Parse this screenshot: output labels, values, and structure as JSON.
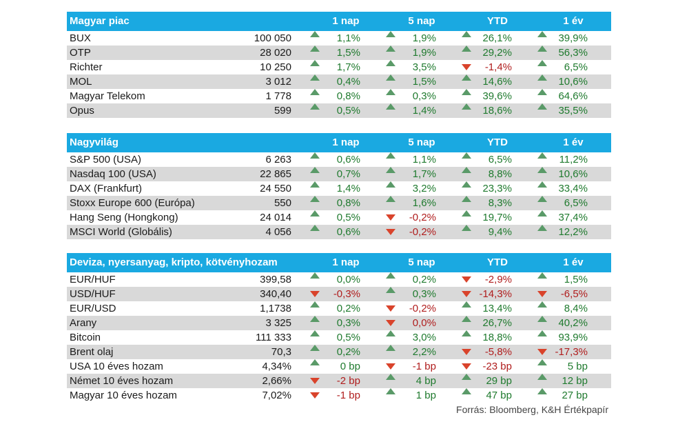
{
  "tables": [
    {
      "title": "Magyar piac",
      "columns": [
        "1 nap",
        "5 nap",
        "YTD",
        "1 év"
      ],
      "rows": [
        {
          "name": "BUX",
          "value": "100 050",
          "changes": [
            {
              "v": "1,1%",
              "d": "up"
            },
            {
              "v": "1,9%",
              "d": "up"
            },
            {
              "v": "26,1%",
              "d": "up"
            },
            {
              "v": "39,9%",
              "d": "up"
            }
          ]
        },
        {
          "name": "OTP",
          "value": "28 020",
          "changes": [
            {
              "v": "1,5%",
              "d": "up"
            },
            {
              "v": "1,9%",
              "d": "up"
            },
            {
              "v": "29,2%",
              "d": "up"
            },
            {
              "v": "56,3%",
              "d": "up"
            }
          ]
        },
        {
          "name": "Richter",
          "value": "10 250",
          "changes": [
            {
              "v": "1,7%",
              "d": "up"
            },
            {
              "v": "3,5%",
              "d": "up"
            },
            {
              "v": "-1,4%",
              "d": "down"
            },
            {
              "v": "6,5%",
              "d": "up"
            }
          ]
        },
        {
          "name": "MOL",
          "value": "3 012",
          "changes": [
            {
              "v": "0,4%",
              "d": "up"
            },
            {
              "v": "1,5%",
              "d": "up"
            },
            {
              "v": "14,6%",
              "d": "up"
            },
            {
              "v": "10,6%",
              "d": "up"
            }
          ]
        },
        {
          "name": "Magyar Telekom",
          "value": "1 778",
          "changes": [
            {
              "v": "0,8%",
              "d": "up"
            },
            {
              "v": "0,3%",
              "d": "up"
            },
            {
              "v": "39,6%",
              "d": "up"
            },
            {
              "v": "64,6%",
              "d": "up"
            }
          ]
        },
        {
          "name": "Opus",
          "value": "599",
          "changes": [
            {
              "v": "0,5%",
              "d": "up"
            },
            {
              "v": "1,4%",
              "d": "up"
            },
            {
              "v": "18,6%",
              "d": "up"
            },
            {
              "v": "35,5%",
              "d": "up"
            }
          ]
        }
      ]
    },
    {
      "title": "Nagyvilág",
      "columns": [
        "1 nap",
        "5 nap",
        "YTD",
        "1 év"
      ],
      "rows": [
        {
          "name": "S&P 500 (USA)",
          "value": "6 263",
          "changes": [
            {
              "v": "0,6%",
              "d": "up"
            },
            {
              "v": "1,1%",
              "d": "up"
            },
            {
              "v": "6,5%",
              "d": "up"
            },
            {
              "v": "11,2%",
              "d": "up"
            }
          ]
        },
        {
          "name": "Nasdaq 100 (USA)",
          "value": "22 865",
          "changes": [
            {
              "v": "0,7%",
              "d": "up"
            },
            {
              "v": "1,7%",
              "d": "up"
            },
            {
              "v": "8,8%",
              "d": "up"
            },
            {
              "v": "10,6%",
              "d": "up"
            }
          ]
        },
        {
          "name": "DAX (Frankfurt)",
          "value": "24 550",
          "changes": [
            {
              "v": "1,4%",
              "d": "up"
            },
            {
              "v": "3,2%",
              "d": "up"
            },
            {
              "v": "23,3%",
              "d": "up"
            },
            {
              "v": "33,4%",
              "d": "up"
            }
          ]
        },
        {
          "name": "Stoxx Europe 600 (Európa)",
          "value": "550",
          "changes": [
            {
              "v": "0,8%",
              "d": "up"
            },
            {
              "v": "1,6%",
              "d": "up"
            },
            {
              "v": "8,3%",
              "d": "up"
            },
            {
              "v": "6,5%",
              "d": "up"
            }
          ]
        },
        {
          "name": "Hang Seng (Hongkong)",
          "value": "24 014",
          "changes": [
            {
              "v": "0,5%",
              "d": "up"
            },
            {
              "v": "-0,2%",
              "d": "down"
            },
            {
              "v": "19,7%",
              "d": "up"
            },
            {
              "v": "37,4%",
              "d": "up"
            }
          ]
        },
        {
          "name": "MSCI World (Globális)",
          "value": "4 056",
          "changes": [
            {
              "v": "0,6%",
              "d": "up"
            },
            {
              "v": "-0,2%",
              "d": "down"
            },
            {
              "v": "9,4%",
              "d": "up"
            },
            {
              "v": "12,2%",
              "d": "up"
            }
          ]
        }
      ]
    },
    {
      "title": "Deviza, nyersanyag, kripto, kötvényhozam",
      "columns": [
        "1 nap",
        "5 nap",
        "YTD",
        "1 év"
      ],
      "rows": [
        {
          "name": "EUR/HUF",
          "value": "399,58",
          "changes": [
            {
              "v": "0,0%",
              "d": "up"
            },
            {
              "v": "0,2%",
              "d": "up"
            },
            {
              "v": "-2,9%",
              "d": "down"
            },
            {
              "v": "1,5%",
              "d": "up"
            }
          ]
        },
        {
          "name": "USD/HUF",
          "value": "340,40",
          "changes": [
            {
              "v": "-0,3%",
              "d": "down"
            },
            {
              "v": "0,3%",
              "d": "up"
            },
            {
              "v": "-14,3%",
              "d": "down"
            },
            {
              "v": "-6,5%",
              "d": "down"
            }
          ]
        },
        {
          "name": "EUR/USD",
          "value": "1,1738",
          "changes": [
            {
              "v": "0,2%",
              "d": "up"
            },
            {
              "v": "-0,2%",
              "d": "down"
            },
            {
              "v": "13,4%",
              "d": "up"
            },
            {
              "v": "8,4%",
              "d": "up"
            }
          ]
        },
        {
          "name": "Arany",
          "value": "3 325",
          "changes": [
            {
              "v": "0,3%",
              "d": "up"
            },
            {
              "v": "0,0%",
              "d": "down"
            },
            {
              "v": "26,7%",
              "d": "up"
            },
            {
              "v": "40,2%",
              "d": "up"
            }
          ]
        },
        {
          "name": "Bitcoin",
          "value": "111 333",
          "changes": [
            {
              "v": "0,5%",
              "d": "up"
            },
            {
              "v": "3,0%",
              "d": "up"
            },
            {
              "v": "18,8%",
              "d": "up"
            },
            {
              "v": "93,9%",
              "d": "up"
            }
          ]
        },
        {
          "name": "Brent olaj",
          "value": "70,3",
          "changes": [
            {
              "v": "0,2%",
              "d": "up"
            },
            {
              "v": "2,2%",
              "d": "up"
            },
            {
              "v": "-5,8%",
              "d": "down"
            },
            {
              "v": "-17,3%",
              "d": "down"
            }
          ]
        },
        {
          "name": "USA 10 éves hozam",
          "value": "4,34%",
          "changes": [
            {
              "v": "0 bp",
              "d": "up"
            },
            {
              "v": "-1 bp",
              "d": "down"
            },
            {
              "v": "-23 bp",
              "d": "down"
            },
            {
              "v": "5 bp",
              "d": "up"
            }
          ]
        },
        {
          "name": "Német 10 éves hozam",
          "value": "2,66%",
          "changes": [
            {
              "v": "-2 bp",
              "d": "down"
            },
            {
              "v": "4 bp",
              "d": "up"
            },
            {
              "v": "29 bp",
              "d": "up"
            },
            {
              "v": "12 bp",
              "d": "up"
            }
          ]
        },
        {
          "name": "Magyar 10 éves hozam",
          "value": "7,02%",
          "changes": [
            {
              "v": "-1 bp",
              "d": "down"
            },
            {
              "v": "1 bp",
              "d": "up"
            },
            {
              "v": "47 bp",
              "d": "up"
            },
            {
              "v": "27 bp",
              "d": "up"
            }
          ]
        }
      ]
    }
  ],
  "source": "Forrás: Bloomberg, K&H Értékpapír",
  "colors": {
    "header": "#1aa9e1",
    "up": "#1f7a2e",
    "down": "#b01d1d",
    "alt_row": "#d9d9d9"
  }
}
